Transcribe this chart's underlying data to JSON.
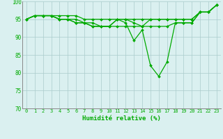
{
  "xlabel": "Humidité relative (%)",
  "x": [
    0,
    1,
    2,
    3,
    4,
    5,
    6,
    7,
    8,
    9,
    10,
    11,
    12,
    13,
    14,
    15,
    16,
    17,
    18,
    19,
    20,
    21,
    22,
    23
  ],
  "line1": [
    95,
    96,
    96,
    96,
    96,
    96,
    96,
    95,
    95,
    95,
    95,
    95,
    95,
    95,
    95,
    95,
    95,
    95,
    95,
    95,
    95,
    97,
    97,
    99
  ],
  "line2": [
    95,
    96,
    96,
    96,
    95,
    95,
    95,
    94,
    94,
    93,
    93,
    95,
    95,
    94,
    93,
    95,
    95,
    95,
    95,
    95,
    95,
    97,
    97,
    99
  ],
  "line3": [
    95,
    96,
    96,
    96,
    95,
    95,
    94,
    94,
    93,
    93,
    93,
    93,
    93,
    93,
    93,
    93,
    93,
    93,
    94,
    94,
    94,
    97,
    97,
    99
  ],
  "line4": [
    95,
    96,
    96,
    96,
    95,
    95,
    94,
    94,
    93,
    93,
    93,
    95,
    94,
    89,
    92,
    82,
    79,
    83,
    94,
    94,
    94,
    97,
    97,
    99
  ],
  "ylim": [
    70,
    100
  ],
  "yticks": [
    70,
    75,
    80,
    85,
    90,
    95,
    100
  ],
  "xlim_min": -0.5,
  "xlim_max": 23.5,
  "bg_color": "#daf0f0",
  "grid_color": "#aacccc",
  "line_color": "#00aa00",
  "marker": "D",
  "markersize": 2.0,
  "linewidth": 0.9,
  "tick_fontsize": 5.0,
  "xlabel_fontsize": 6.5
}
